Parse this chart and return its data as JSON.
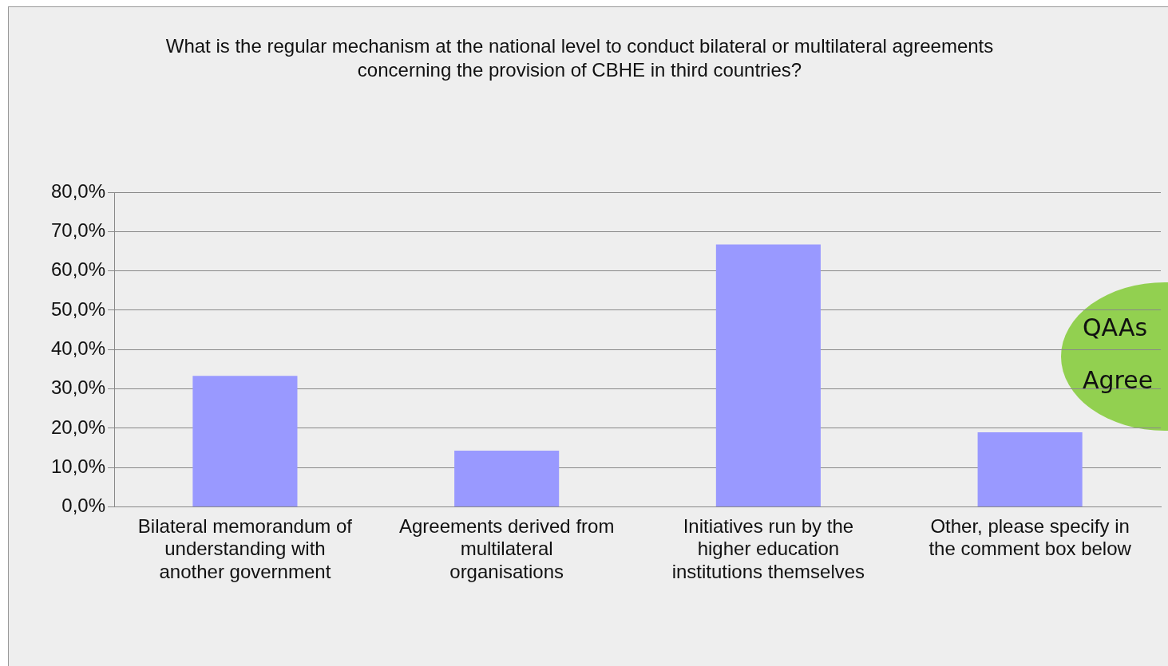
{
  "chart_data": {
    "type": "bar",
    "title": "What is the regular mechanism at the national level to conduct bilateral or multilateral agreements concerning the provision of CBHE in third countries?",
    "categories": [
      "Bilateral memorandum of understanding with another government",
      "Agreements derived from multilateral organisations",
      "Initiatives run by the higher education institutions themselves",
      "Other, please specify in the comment box below"
    ],
    "values": [
      33.3,
      14.3,
      66.7,
      19.0
    ],
    "color": "#9999ff",
    "ylim": [
      0,
      80
    ],
    "yticks": [
      {
        "value": 0,
        "label": "0,0%"
      },
      {
        "value": 10,
        "label": "10,0%"
      },
      {
        "value": 20,
        "label": "20,0%"
      },
      {
        "value": 30,
        "label": "30,0%"
      },
      {
        "value": 40,
        "label": "40,0%"
      },
      {
        "value": 50,
        "label": "50,0%"
      },
      {
        "value": 60,
        "label": "60,0%"
      },
      {
        "value": 70,
        "label": "70,0%"
      },
      {
        "value": 80,
        "label": "80,0%"
      }
    ],
    "grid": "y",
    "annotations": [
      "QAAs",
      "Agree"
    ]
  }
}
